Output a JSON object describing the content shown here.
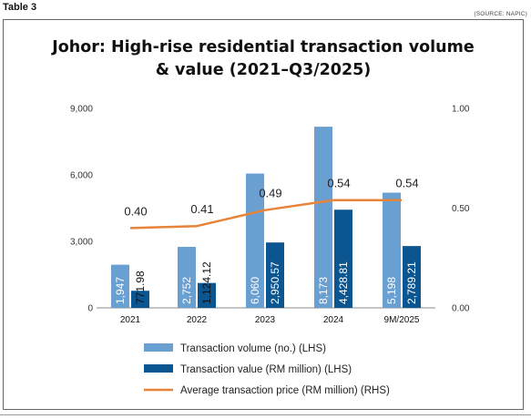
{
  "header": {
    "table_label": "Table 3",
    "source": "(SOURCE: NAPIC)"
  },
  "chart_data": {
    "type": "bar",
    "title_line1": "Johor: High-rise residential transaction volume",
    "title_line2": "& value (2021–Q3/2025)",
    "categories": [
      "2021",
      "2022",
      "2023",
      "2024",
      "9M/2025"
    ],
    "series": [
      {
        "name": "Transaction volume (no.) (LHS)",
        "axis": "left",
        "kind": "bar",
        "color": "#6a9fd1",
        "values": [
          1947,
          2752,
          6060,
          8173,
          5198
        ],
        "labels": [
          "1,947",
          "2,752",
          "6,060",
          "8,173",
          "5,198"
        ]
      },
      {
        "name": "Transaction value (RM million) (LHS)",
        "axis": "left",
        "kind": "bar",
        "color": "#0b5591",
        "values": [
          771.98,
          1124.12,
          2950.57,
          4428.81,
          2789.21
        ],
        "labels": [
          "771.98",
          "1,124.12",
          "2,950.57",
          "4,428.81",
          "2,789.21"
        ]
      },
      {
        "name": "Average transaction price (RM million) (RHS)",
        "axis": "right",
        "kind": "line",
        "color": "#e8833a",
        "values": [
          0.4,
          0.41,
          0.49,
          0.54,
          0.54
        ],
        "labels": [
          "0.40",
          "0.41",
          "0.49",
          "0.54",
          "0.54"
        ]
      }
    ],
    "y_left": {
      "ylim": [
        0,
        9000
      ],
      "ticks": [
        0,
        3000,
        6000,
        9000
      ],
      "tick_labels": [
        "0",
        "3,000",
        "6,000",
        "9,000"
      ]
    },
    "y_right": {
      "ylim": [
        0,
        1.0
      ],
      "ticks": [
        0,
        0.5,
        1.0
      ],
      "tick_labels": [
        "0.00",
        "0.50",
        "1.00"
      ]
    },
    "grid": false,
    "legend_position": "bottom"
  }
}
